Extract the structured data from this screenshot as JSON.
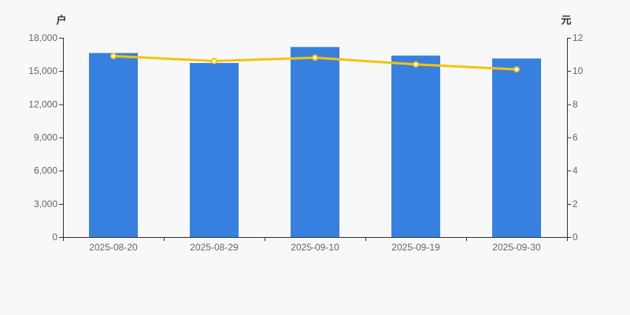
{
  "colors": {
    "background": "#f8f8f8",
    "bar": "#3780e0",
    "line": "#f6c309",
    "marker_fill": "#ffffff",
    "axis_line": "#333333",
    "tick_text": "#666666"
  },
  "chart_data": {
    "type": "bar",
    "subtype": "bar+line-combo",
    "title": "",
    "categories": [
      "2025-08-20",
      "2025-08-29",
      "2025-09-10",
      "2025-09-19",
      "2025-09-30"
    ],
    "series": [
      {
        "name": "户",
        "type": "bar",
        "y_axis": "left",
        "values": [
          16630,
          15720,
          17170,
          16390,
          16130
        ],
        "color": "#3780e0"
      },
      {
        "name": "元",
        "type": "line",
        "y_axis": "right",
        "values": [
          10.9,
          10.6,
          10.8,
          10.4,
          10.1
        ],
        "color": "#f6c309",
        "marker": {
          "fill": "#ffffff",
          "border": "#f6c309"
        }
      }
    ],
    "left_axis": {
      "name": "户",
      "range": [
        0,
        18000
      ],
      "tick_labels": [
        "0",
        "3,000",
        "6,000",
        "9,000",
        "12,000",
        "15,000",
        "18,000"
      ]
    },
    "right_axis": {
      "name": "元",
      "range": [
        0,
        12
      ],
      "tick_labels": [
        "0",
        "2",
        "4",
        "6",
        "8",
        "10",
        "12"
      ]
    },
    "grid": false,
    "legend": null
  }
}
